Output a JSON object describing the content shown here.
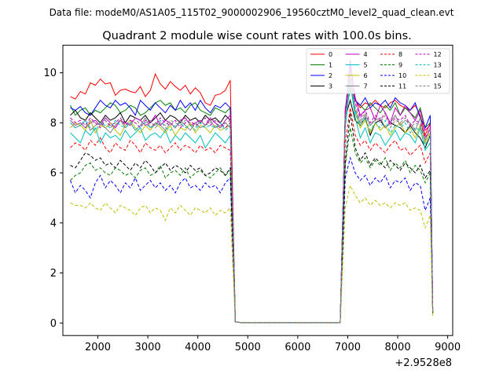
{
  "chart_data": {
    "type": "line",
    "suptitle": "Data file: modeM0/AS1A05_115T02_9000002906_19560cztM0_level2_quad_clean.evt",
    "title": "Quadrant 2 module wise count rates with 100.0s bins.",
    "xlabel": "",
    "ylabel": "",
    "x_offset_label": "+2.9528e8",
    "xlim": [
      1300,
      9100
    ],
    "ylim": [
      -0.5,
      11.1
    ],
    "xticks": [
      2000,
      3000,
      4000,
      5000,
      6000,
      7000,
      8000,
      9000
    ],
    "yticks": [
      0,
      2,
      4,
      6,
      8,
      10
    ],
    "legend_position": "top-right",
    "x": [
      1450,
      1550,
      1650,
      1750,
      1850,
      1950,
      2050,
      2150,
      2250,
      2350,
      2450,
      2550,
      2650,
      2750,
      2850,
      2950,
      3050,
      3150,
      3250,
      3350,
      3450,
      3550,
      3650,
      3750,
      3850,
      3950,
      4050,
      4150,
      4250,
      4350,
      4450,
      4550,
      4650,
      4750,
      4850,
      6850,
      6950,
      7050,
      7150,
      7250,
      7350,
      7450,
      7550,
      7650,
      7750,
      7850,
      7950,
      8050,
      8150,
      8250,
      8350,
      8450,
      8550,
      8650,
      8700
    ],
    "series": [
      {
        "name": "0",
        "color": "#ff0000",
        "dash": "solid",
        "values": [
          9.05,
          8.95,
          9.25,
          9.15,
          9.6,
          9.5,
          9.75,
          9.55,
          9.6,
          9.1,
          9.3,
          9.35,
          9.25,
          9.2,
          9.45,
          9.05,
          9.3,
          9.95,
          9.55,
          9.35,
          9.65,
          9.45,
          9.3,
          9.5,
          9.15,
          9.4,
          9.2,
          8.8,
          8.7,
          9.1,
          9.15,
          9.3,
          9.7,
          0.05,
          0.02,
          0.02,
          8.6,
          9.4,
          8.9,
          8.6,
          8.8,
          8.7,
          8.9,
          8.7,
          8.6,
          8.8,
          8.9,
          8.7,
          8.6,
          8.5,
          8.7,
          8.3,
          7.5,
          8.0,
          0.4
        ]
      },
      {
        "name": "1",
        "color": "#008000",
        "dash": "solid",
        "values": [
          8.7,
          8.3,
          8.5,
          8.6,
          8.3,
          8.5,
          8.4,
          8.6,
          8.8,
          8.7,
          8.4,
          8.5,
          8.7,
          8.6,
          8.3,
          8.4,
          8.6,
          8.8,
          8.9,
          8.7,
          8.8,
          8.5,
          8.6,
          8.4,
          8.7,
          8.8,
          8.5,
          8.4,
          8.3,
          8.6,
          8.5,
          8.4,
          8.6,
          0.05,
          0.02,
          0.02,
          8.4,
          9.3,
          8.9,
          8.7,
          8.5,
          8.8,
          8.6,
          8.4,
          8.7,
          8.5,
          8.8,
          8.3,
          8.6,
          8.4,
          8.2,
          8.6,
          7.8,
          8.0,
          0.5
        ]
      },
      {
        "name": "2",
        "color": "#0000ff",
        "dash": "solid",
        "values": [
          8.6,
          8.5,
          8.65,
          8.4,
          8.3,
          8.6,
          8.9,
          8.7,
          8.6,
          8.9,
          8.7,
          8.8,
          8.6,
          8.3,
          8.9,
          8.7,
          8.5,
          8.8,
          8.6,
          8.4,
          8.7,
          8.5,
          8.9,
          8.6,
          8.8,
          8.5,
          8.9,
          8.6,
          8.4,
          8.7,
          8.6,
          8.8,
          8.6,
          0.05,
          0.02,
          0.02,
          8.4,
          10.5,
          8.9,
          8.7,
          9.0,
          8.6,
          8.8,
          8.7,
          8.9,
          8.6,
          9.0,
          8.8,
          8.7,
          8.5,
          8.8,
          8.2,
          7.8,
          8.3,
          0.5
        ]
      },
      {
        "name": "3",
        "color": "#000000",
        "dash": "solid",
        "values": [
          8.3,
          8.5,
          8.2,
          8.1,
          8.4,
          8.2,
          8.0,
          8.3,
          8.1,
          8.2,
          8.4,
          8.0,
          8.3,
          8.2,
          8.1,
          8.3,
          8.0,
          8.2,
          8.4,
          8.1,
          8.3,
          8.2,
          8.0,
          8.3,
          8.1,
          8.2,
          8.0,
          8.3,
          8.1,
          8.2,
          8.0,
          8.3,
          8.1,
          0.05,
          0.02,
          0.02,
          8.2,
          8.9,
          8.1,
          7.9,
          8.2,
          7.5,
          8.0,
          8.1,
          7.8,
          8.0,
          7.9,
          7.8,
          7.6,
          7.9,
          7.6,
          7.4,
          7.0,
          7.5,
          0.4
        ]
      },
      {
        "name": "4",
        "color": "#bf00bf",
        "dash": "solid",
        "values": [
          8.1,
          7.9,
          8.0,
          7.8,
          8.0,
          8.1,
          7.9,
          8.2,
          8.0,
          7.8,
          8.1,
          8.0,
          7.9,
          8.2,
          8.1,
          7.9,
          8.0,
          8.3,
          7.9,
          8.1,
          8.0,
          7.8,
          8.1,
          8.2,
          7.9,
          8.0,
          8.1,
          7.9,
          8.2,
          8.0,
          7.8,
          8.1,
          8.3,
          0.05,
          0.02,
          0.02,
          8.5,
          10.3,
          9.0,
          8.3,
          8.5,
          8.6,
          8.1,
          8.7,
          8.4,
          8.0,
          8.6,
          8.3,
          8.7,
          8.4,
          8.1,
          8.5,
          7.7,
          7.9,
          0.5
        ]
      },
      {
        "name": "5",
        "color": "#00bfbf",
        "dash": "solid",
        "values": [
          7.6,
          7.4,
          7.2,
          7.7,
          7.5,
          7.8,
          7.2,
          7.6,
          7.4,
          7.5,
          7.3,
          7.7,
          7.4,
          7.6,
          7.8,
          7.3,
          7.5,
          7.6,
          7.4,
          7.7,
          7.2,
          7.5,
          7.3,
          7.6,
          7.4,
          7.2,
          7.5,
          7.0,
          7.3,
          7.6,
          7.4,
          7.2,
          7.5,
          0.05,
          0.02,
          0.02,
          7.8,
          9.6,
          8.2,
          7.4,
          7.8,
          7.2,
          7.6,
          7.5,
          7.1,
          7.4,
          7.7,
          7.3,
          7.6,
          7.5,
          7.2,
          7.8,
          6.9,
          7.2,
          0.4
        ]
      },
      {
        "name": "6",
        "color": "#bfbf00",
        "dash": "solid",
        "values": [
          7.8,
          8.0,
          7.9,
          7.7,
          8.1,
          7.6,
          7.9,
          7.8,
          8.0,
          7.7,
          7.5,
          7.9,
          8.1,
          7.8,
          7.6,
          7.9,
          7.7,
          8.0,
          7.8,
          7.6,
          7.9,
          7.5,
          7.8,
          7.7,
          8.0,
          7.6,
          7.9,
          7.8,
          7.6,
          7.9,
          7.7,
          7.8,
          7.9,
          0.05,
          0.02,
          0.02,
          8.0,
          10.0,
          8.4,
          7.8,
          8.1,
          7.6,
          8.0,
          7.7,
          7.9,
          7.5,
          7.8,
          8.0,
          7.6,
          7.8,
          7.4,
          7.9,
          7.2,
          7.6,
          0.3
        ]
      },
      {
        "name": "7",
        "color": "#808080",
        "dash": "solid",
        "values": [
          8.0,
          7.8,
          7.9,
          8.1,
          7.7,
          7.9,
          8.0,
          7.8,
          7.6,
          7.9,
          8.1,
          7.8,
          8.0,
          7.7,
          7.9,
          8.2,
          7.8,
          8.0,
          7.9,
          7.7,
          8.0,
          7.8,
          8.1,
          7.9,
          7.7,
          8.0,
          7.8,
          7.9,
          8.1,
          7.8,
          7.9,
          8.0,
          7.8,
          0.05,
          0.02,
          0.02,
          8.1,
          9.8,
          8.5,
          8.0,
          8.3,
          7.9,
          8.1,
          8.2,
          7.8,
          8.0,
          8.3,
          7.9,
          8.1,
          8.0,
          7.7,
          8.2,
          7.3,
          7.8,
          0.4
        ]
      },
      {
        "name": "8",
        "color": "#ff0000",
        "dash": "dashed",
        "values": [
          7.0,
          7.2,
          7.1,
          6.9,
          7.3,
          7.1,
          7.4,
          7.0,
          6.8,
          7.2,
          7.0,
          6.9,
          7.3,
          7.1,
          6.8,
          7.2,
          7.0,
          6.9,
          7.1,
          6.8,
          7.0,
          7.2,
          6.9,
          7.1,
          7.0,
          6.8,
          7.1,
          6.9,
          7.0,
          6.8,
          7.1,
          7.0,
          6.9,
          0.05,
          0.02,
          0.02,
          7.2,
          8.6,
          7.5,
          7.1,
          7.3,
          6.9,
          7.2,
          7.0,
          6.8,
          7.1,
          7.3,
          6.9,
          7.0,
          6.7,
          6.9,
          7.1,
          6.4,
          6.8,
          0.4
        ]
      },
      {
        "name": "9",
        "color": "#008000",
        "dash": "dashed",
        "values": [
          5.7,
          5.9,
          6.0,
          6.3,
          6.4,
          6.1,
          6.2,
          6.0,
          5.9,
          6.2,
          6.1,
          5.9,
          6.0,
          5.8,
          6.1,
          6.2,
          5.9,
          6.0,
          6.3,
          5.8,
          6.0,
          6.1,
          5.9,
          6.2,
          5.8,
          6.0,
          6.1,
          5.9,
          5.8,
          6.0,
          6.2,
          5.9,
          6.1,
          0.05,
          0.02,
          0.02,
          6.3,
          7.8,
          6.8,
          6.4,
          6.6,
          6.2,
          6.5,
          6.3,
          6.6,
          6.1,
          6.4,
          6.2,
          6.5,
          6.0,
          6.3,
          6.1,
          5.6,
          6.0,
          0.4
        ]
      },
      {
        "name": "10",
        "color": "#0000ff",
        "dash": "dashed",
        "values": [
          5.7,
          5.2,
          5.5,
          5.3,
          5.0,
          5.6,
          5.9,
          5.4,
          5.7,
          5.5,
          5.2,
          5.6,
          5.4,
          5.8,
          5.3,
          5.5,
          5.7,
          5.4,
          5.6,
          5.3,
          5.5,
          5.2,
          5.6,
          5.8,
          5.4,
          5.5,
          5.3,
          5.6,
          5.4,
          5.5,
          5.2,
          5.6,
          5.8,
          0.05,
          0.02,
          0.02,
          5.8,
          6.6,
          6.0,
          5.7,
          5.9,
          5.5,
          5.8,
          5.6,
          5.9,
          5.4,
          5.7,
          5.6,
          5.8,
          5.3,
          5.6,
          5.5,
          4.5,
          5.0,
          0.4
        ]
      },
      {
        "name": "11",
        "color": "#000000",
        "dash": "dashed",
        "values": [
          6.3,
          6.2,
          6.5,
          6.8,
          6.7,
          6.5,
          6.6,
          6.3,
          6.4,
          6.2,
          6.5,
          6.3,
          6.1,
          6.4,
          6.2,
          6.5,
          6.3,
          6.0,
          6.2,
          6.4,
          6.1,
          6.3,
          6.2,
          6.0,
          6.3,
          6.1,
          6.2,
          5.9,
          6.0,
          6.2,
          6.1,
          5.9,
          6.2,
          0.05,
          0.02,
          0.02,
          6.4,
          8.4,
          7.0,
          6.5,
          6.8,
          6.3,
          6.6,
          6.4,
          6.2,
          6.5,
          6.3,
          6.1,
          6.4,
          6.2,
          6.0,
          6.3,
          5.8,
          6.1,
          0.4
        ]
      },
      {
        "name": "12",
        "color": "#bf00bf",
        "dash": "dashed",
        "values": [
          8.2,
          8.0,
          8.1,
          7.9,
          8.2,
          8.0,
          7.8,
          8.1,
          7.9,
          8.0,
          8.2,
          7.9,
          8.1,
          8.0,
          7.8,
          8.1,
          8.0,
          7.9,
          8.2,
          8.0,
          7.9,
          8.1,
          7.8,
          8.0,
          8.1,
          7.9,
          8.0,
          8.2,
          7.9,
          8.1,
          8.0,
          7.8,
          8.0,
          0.05,
          0.02,
          0.02,
          8.3,
          10.1,
          8.8,
          8.2,
          8.5,
          8.0,
          8.3,
          8.1,
          8.4,
          7.9,
          8.2,
          8.1,
          8.3,
          7.9,
          8.1,
          8.0,
          7.4,
          7.8,
          0.5
        ]
      },
      {
        "name": "13",
        "color": "#00bfbf",
        "dash": "dashed",
        "values": [
          8.0,
          7.8,
          7.9,
          8.1,
          7.8,
          7.7,
          8.0,
          7.9,
          7.8,
          8.1,
          7.9,
          7.8,
          8.0,
          7.7,
          7.9,
          8.0,
          7.8,
          7.9,
          8.1,
          7.8,
          7.7,
          7.9,
          8.0,
          7.8,
          7.9,
          7.7,
          8.0,
          7.8,
          7.9,
          7.8,
          8.0,
          7.7,
          7.9,
          0.05,
          0.02,
          0.02,
          8.0,
          9.7,
          8.4,
          7.9,
          8.2,
          7.7,
          8.0,
          7.8,
          8.1,
          7.6,
          7.9,
          7.8,
          8.0,
          7.6,
          7.8,
          7.7,
          7.1,
          7.5,
          0.4
        ]
      },
      {
        "name": "14",
        "color": "#bfbf00",
        "dash": "dashed",
        "values": [
          4.8,
          4.7,
          4.7,
          4.6,
          4.8,
          4.6,
          4.5,
          4.8,
          4.6,
          4.4,
          4.7,
          4.6,
          4.5,
          4.3,
          4.6,
          4.7,
          4.4,
          4.6,
          4.5,
          4.1,
          4.6,
          4.4,
          4.7,
          4.5,
          4.3,
          4.6,
          4.5,
          4.4,
          4.6,
          4.3,
          4.5,
          4.4,
          4.6,
          0.05,
          0.02,
          0.02,
          4.6,
          5.5,
          5.1,
          4.8,
          5.0,
          4.7,
          4.9,
          4.7,
          4.8,
          4.6,
          4.8,
          4.7,
          4.8,
          4.5,
          4.6,
          4.5,
          3.8,
          4.3,
          0.3
        ]
      },
      {
        "name": "15",
        "color": "#808080",
        "dash": "dashed",
        "values": [
          8.1,
          7.9,
          8.0,
          7.8,
          8.1,
          8.0,
          7.9,
          8.1,
          7.8,
          8.0,
          8.1,
          7.9,
          8.0,
          8.2,
          7.9,
          8.0,
          8.1,
          7.8,
          8.0,
          7.9,
          8.1,
          8.0,
          7.9,
          8.1,
          8.0,
          7.8,
          8.1,
          7.9,
          8.0,
          8.1,
          7.8,
          8.0,
          8.1,
          0.05,
          0.02,
          0.02,
          8.2,
          9.9,
          8.6,
          8.1,
          8.4,
          7.9,
          8.2,
          8.0,
          8.3,
          7.8,
          8.1,
          8.0,
          8.2,
          7.8,
          8.0,
          7.9,
          7.3,
          7.7,
          0.4
        ]
      }
    ]
  }
}
